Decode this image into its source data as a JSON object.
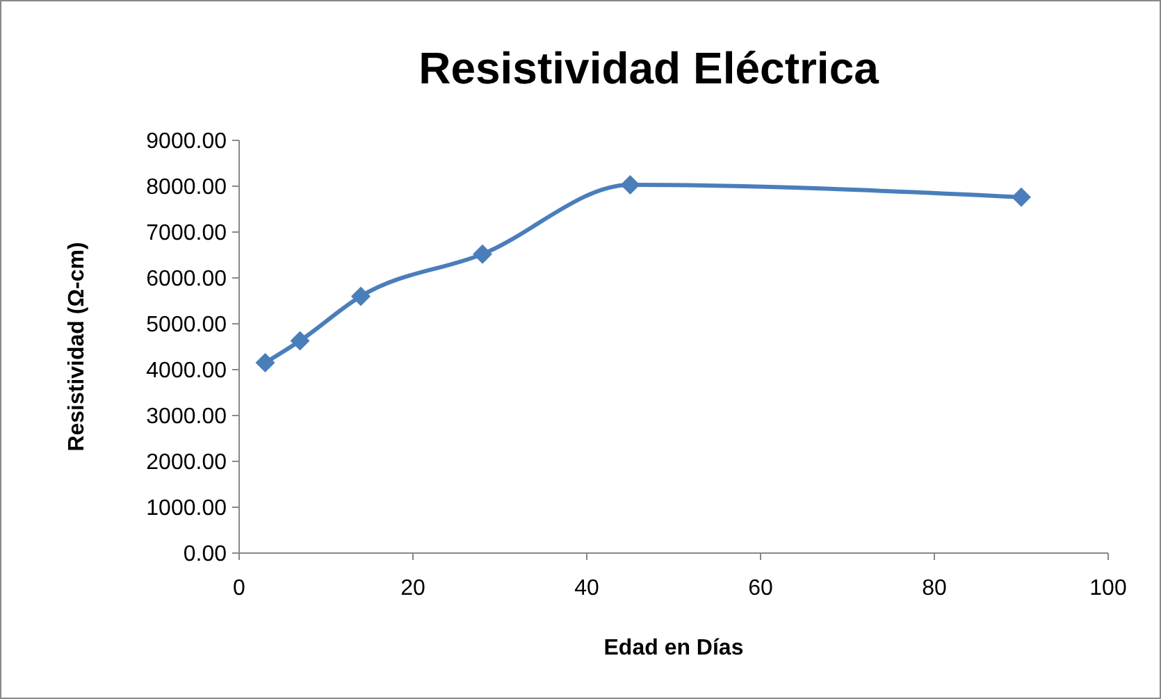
{
  "chart_data": {
    "type": "line",
    "title": "Resistividad Eléctrica",
    "xlabel": "Edad en Días",
    "ylabel": "Resistividad (Ω-cm)",
    "x": [
      3,
      7,
      14,
      28,
      45,
      90
    ],
    "series": [
      {
        "color": "#4a7ebb",
        "values": [
          4150,
          4630,
          5600,
          6520,
          8030,
          7760
        ]
      }
    ],
    "xlim": [
      0,
      100
    ],
    "xticks": [
      0,
      20,
      40,
      60,
      80,
      100
    ],
    "ylim": [
      0,
      9000
    ],
    "yticks": [
      {
        "value": 0,
        "label": "0.00"
      },
      {
        "value": 1000,
        "label": "1000.00"
      },
      {
        "value": 2000,
        "label": "2000.00"
      },
      {
        "value": 3000,
        "label": "3000.00"
      },
      {
        "value": 4000,
        "label": "4000.00"
      },
      {
        "value": 5000,
        "label": "5000.00"
      },
      {
        "value": 6000,
        "label": "6000.00"
      },
      {
        "value": 7000,
        "label": "7000.00"
      },
      {
        "value": 8000,
        "label": "8000.00"
      },
      {
        "value": 9000,
        "label": "9000.00"
      }
    ],
    "grid": false,
    "marker": "diamond",
    "line_style": "solid"
  }
}
